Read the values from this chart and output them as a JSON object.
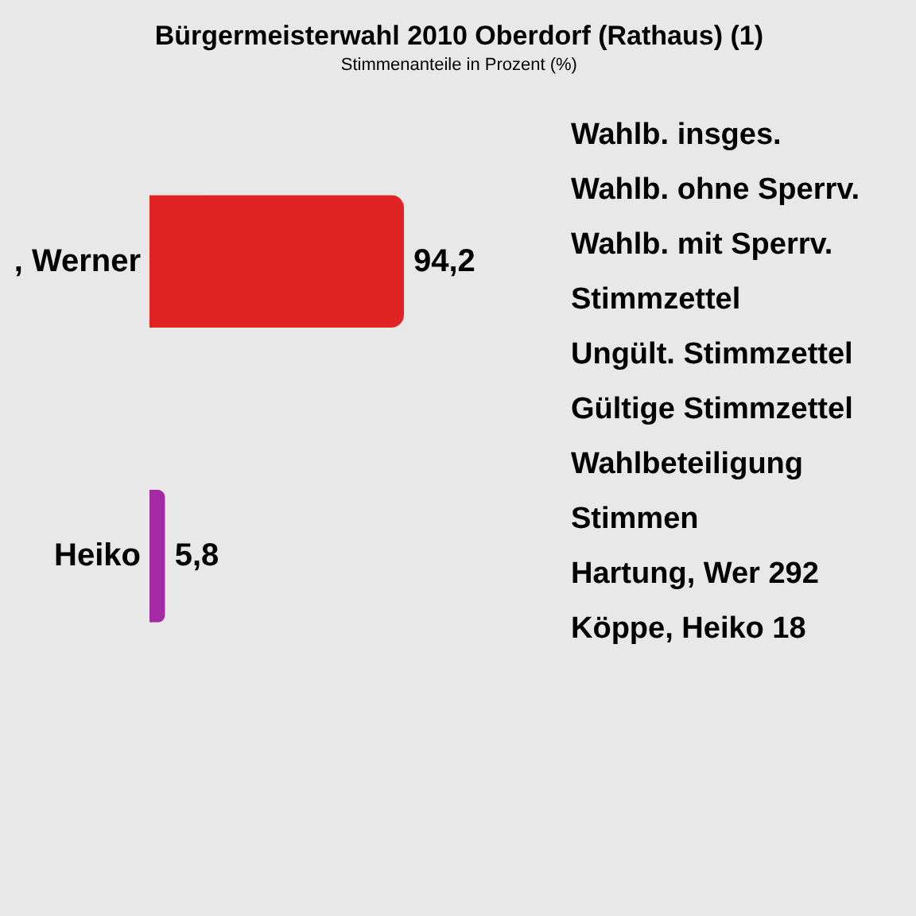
{
  "chart_data": {
    "type": "bar",
    "orientation": "horizontal",
    "title": "Bürgermeisterwahl 2010 Oberdorf (Rathaus) (1)",
    "subtitle": "Stimmenanteile in Prozent (%)",
    "categories": [
      ", Werner",
      "Heiko"
    ],
    "values": [
      94.2,
      5.8
    ],
    "colors": [
      "#e02424",
      "#a52aa5"
    ],
    "value_labels": [
      "94,2",
      "5,8"
    ],
    "annotations": [
      "Wahlb. insges.",
      "Wahlb. ohne Sperrv.",
      "Wahlb. mit Sperrv.",
      "Stimmzettel",
      "Ungült. Stimmzettel",
      "Gültige Stimmzettel",
      "Wahlbeteiligung",
      "Stimmen",
      "Hartung, Wer   292",
      "Köppe, Heiko     18"
    ]
  }
}
